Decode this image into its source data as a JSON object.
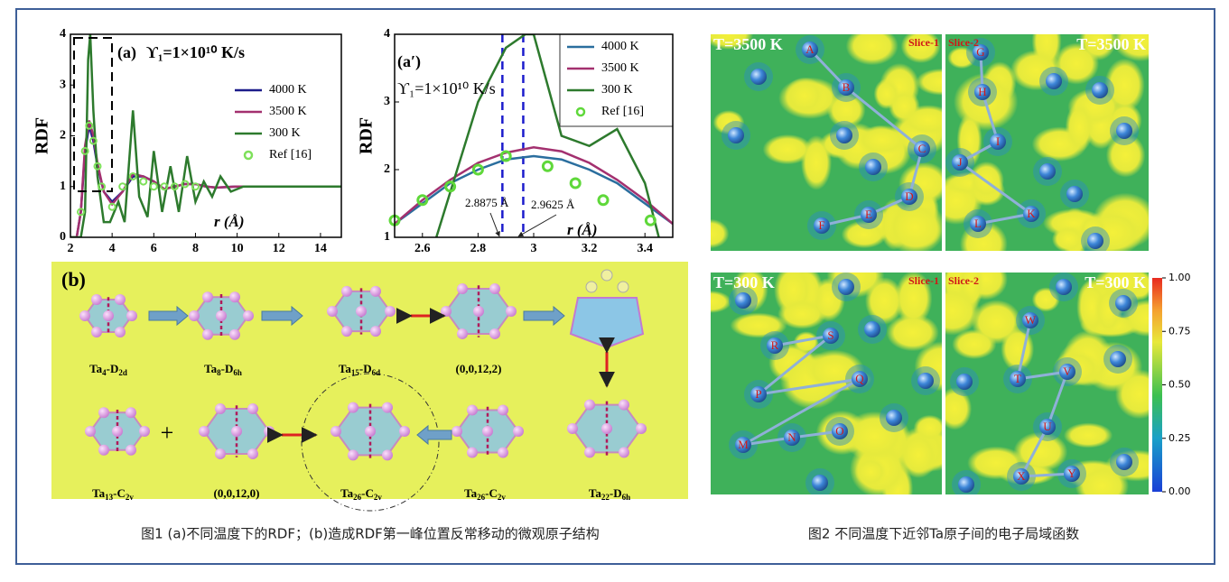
{
  "chart_data": [
    {
      "type": "line",
      "panel_label": "(a)",
      "annotation": "ϒ₁=1×10¹⁰ K/s",
      "x_label": "r (Å)",
      "y_label": "RDF",
      "xlim": [
        2,
        15
      ],
      "xticks": [
        2,
        4,
        6,
        8,
        10,
        12,
        14
      ],
      "ylim": [
        0,
        4
      ],
      "yticks": [
        0,
        1,
        2,
        3,
        4
      ],
      "legend": "center right",
      "legend_frame": false,
      "series": [
        {
          "name": "4000 K",
          "color": "#1c1c8a",
          "mode": "line",
          "x": [
            2.0,
            2.3,
            2.5,
            2.7,
            2.9,
            3.1,
            3.3,
            3.6,
            4.0,
            4.5,
            5.0,
            5.5,
            6.0,
            6.5,
            7.0,
            7.5,
            8.0,
            8.5,
            9.0,
            10,
            11,
            12,
            13,
            14,
            15
          ],
          "values": [
            0,
            0,
            0.5,
            1.7,
            2.2,
            1.9,
            1.4,
            0.9,
            0.7,
            0.9,
            1.2,
            1.2,
            1.1,
            0.95,
            1.0,
            1.05,
            1.05,
            1.0,
            0.98,
            1.0,
            1.0,
            1.0,
            1.0,
            1.0,
            1.0
          ]
        },
        {
          "name": "3500 K",
          "color": "#a3306f",
          "mode": "line",
          "x": [
            2.0,
            2.3,
            2.5,
            2.7,
            2.9,
            3.1,
            3.3,
            3.6,
            4.0,
            4.5,
            5.0,
            5.5,
            6.0,
            6.5,
            7.0,
            7.5,
            8.0,
            8.5,
            9.0,
            10,
            11,
            12,
            13,
            14,
            15
          ],
          "values": [
            0,
            0,
            0.5,
            1.8,
            2.3,
            2.0,
            1.45,
            0.9,
            0.65,
            0.9,
            1.25,
            1.2,
            1.1,
            0.95,
            1.0,
            1.05,
            1.05,
            1.0,
            0.98,
            1.0,
            1.0,
            1.0,
            1.0,
            1.0,
            1.0
          ]
        },
        {
          "name": "300 K",
          "color": "#2d7a2d",
          "mode": "line",
          "x": [
            2.0,
            2.5,
            2.7,
            2.85,
            2.95,
            3.1,
            3.3,
            3.6,
            3.9,
            4.3,
            4.6,
            5.0,
            5.3,
            5.7,
            6.0,
            6.4,
            6.8,
            7.2,
            7.6,
            8.0,
            8.4,
            8.8,
            9.2,
            9.7,
            10.3,
            11,
            12,
            13,
            14,
            15
          ],
          "values": [
            0,
            0,
            0.5,
            3.5,
            4.0,
            2.5,
            1.2,
            0.3,
            0.3,
            0.7,
            0.3,
            2.5,
            0.8,
            0.4,
            1.7,
            0.5,
            1.4,
            0.5,
            1.6,
            0.7,
            1.1,
            0.8,
            1.2,
            0.9,
            1.0,
            1.0,
            1.0,
            1.0,
            1.0,
            1.0
          ]
        },
        {
          "name": "Ref [16]",
          "color": "#7ee05a",
          "mode": "markers",
          "x": [
            2.5,
            2.7,
            2.9,
            3.1,
            3.3,
            3.5,
            4.0,
            4.5,
            5.0,
            5.5,
            6.0,
            6.5,
            7.0,
            7.5,
            8.0
          ],
          "values": [
            0.5,
            1.7,
            2.2,
            1.9,
            1.4,
            1.0,
            0.6,
            1.0,
            1.2,
            1.1,
            1.0,
            1.0,
            1.0,
            1.05,
            1.0
          ]
        }
      ]
    },
    {
      "type": "line",
      "panel_label": "(a′)",
      "annotation": "ϒ₁=1×10¹⁰ K/s",
      "x_label": "r (Å)",
      "y_label": "RDF",
      "xlim": [
        2.5,
        3.5
      ],
      "xticks": [
        2.6,
        2.8,
        3.0,
        3.2,
        3.4
      ],
      "ylim": [
        1,
        4
      ],
      "yticks": [
        1,
        2,
        3,
        4
      ],
      "legend": "upper right",
      "legend_frame": true,
      "vlines": [
        {
          "x": 2.8875,
          "label": "2.8875 Å",
          "color": "#1c1ccc"
        },
        {
          "x": 2.9625,
          "label": "2.9625 Å",
          "color": "#1c1ccc"
        }
      ],
      "series": [
        {
          "name": "4000 K",
          "color": "#2a6e9e",
          "mode": "line",
          "x": [
            2.5,
            2.6,
            2.7,
            2.8,
            2.9,
            3.0,
            3.1,
            3.2,
            3.3,
            3.4,
            3.5
          ],
          "values": [
            1.2,
            1.5,
            1.8,
            2.0,
            2.15,
            2.2,
            2.15,
            2.0,
            1.8,
            1.5,
            1.2
          ]
        },
        {
          "name": "3500 K",
          "color": "#a3306f",
          "mode": "line",
          "x": [
            2.5,
            2.6,
            2.7,
            2.8,
            2.9,
            3.0,
            3.1,
            3.2,
            3.3,
            3.4,
            3.5
          ],
          "values": [
            1.2,
            1.55,
            1.85,
            2.1,
            2.25,
            2.33,
            2.27,
            2.1,
            1.85,
            1.55,
            1.2
          ]
        },
        {
          "name": "300 K",
          "color": "#2d7a2d",
          "mode": "line",
          "x": [
            2.65,
            2.8,
            2.9,
            2.97,
            3.0,
            3.1,
            3.2,
            3.3,
            3.4,
            3.45
          ],
          "values": [
            1.0,
            3.0,
            3.8,
            4.0,
            4.0,
            2.5,
            2.35,
            2.6,
            1.8,
            1.0
          ]
        },
        {
          "name": "Ref [16]",
          "color": "#5fd83a",
          "mode": "markers",
          "x": [
            2.5,
            2.6,
            2.7,
            2.8,
            2.9,
            3.05,
            3.15,
            3.25,
            3.42
          ],
          "values": [
            1.25,
            1.55,
            1.75,
            2.0,
            2.2,
            2.05,
            1.8,
            1.55,
            1.25
          ]
        }
      ]
    }
  ],
  "panel_b": {
    "label": "(b)",
    "plus": "+",
    "structures": [
      {
        "parts": [
          "Ta",
          "4",
          "-D",
          "2d"
        ]
      },
      {
        "parts": [
          "Ta",
          "8",
          "-D",
          "6h"
        ]
      },
      {
        "parts": [
          "Ta",
          "15",
          "-D",
          "6d"
        ]
      },
      {
        "parts": [
          "(0,0,12,2)"
        ]
      },
      {
        "parts": [
          "Ta",
          "22",
          "-D",
          "6h"
        ]
      },
      {
        "parts": [
          "Ta",
          "26",
          "-C",
          "2v"
        ]
      },
      {
        "parts": [
          "Ta",
          "26",
          "-C",
          "2v"
        ]
      },
      {
        "parts": [
          "(0,0,12,0)"
        ]
      },
      {
        "parts": [
          "Ta",
          "13",
          "-C",
          "2v"
        ]
      }
    ]
  },
  "figure2": {
    "maps": [
      {
        "title": "T=3500 K",
        "slice": "Slice-1",
        "atoms": [
          "A",
          "B",
          "C",
          "D",
          "E",
          "F"
        ]
      },
      {
        "title": "T=3500 K",
        "slice": "Slice-2",
        "atoms": [
          "G",
          "H",
          "I",
          "J",
          "K",
          "L"
        ]
      },
      {
        "title": "T=300 K",
        "slice": "Slice-1",
        "atoms": [
          "R",
          "S",
          "P",
          "Q",
          "M",
          "N",
          "O"
        ]
      },
      {
        "title": "T=300 K",
        "slice": "Slice-2",
        "atoms": [
          "W",
          "T",
          "V",
          "U",
          "X",
          "Y"
        ]
      }
    ],
    "colorbar": {
      "clim": [
        0,
        1
      ],
      "ticks": [
        {
          "value": 0,
          "label": "0.00"
        },
        0.25,
        {
          "value": 0.5,
          "label": "0.50"
        },
        0.75,
        {
          "value": 1,
          "label": "1.00"
        }
      ]
    }
  },
  "captions": [
    "图1 (a)不同温度下的RDF；(b)造成RDF第一峰位置反常移动的微观原子结构",
    "图2 不同温度下近邻Ta原子间的电子局域函数"
  ]
}
